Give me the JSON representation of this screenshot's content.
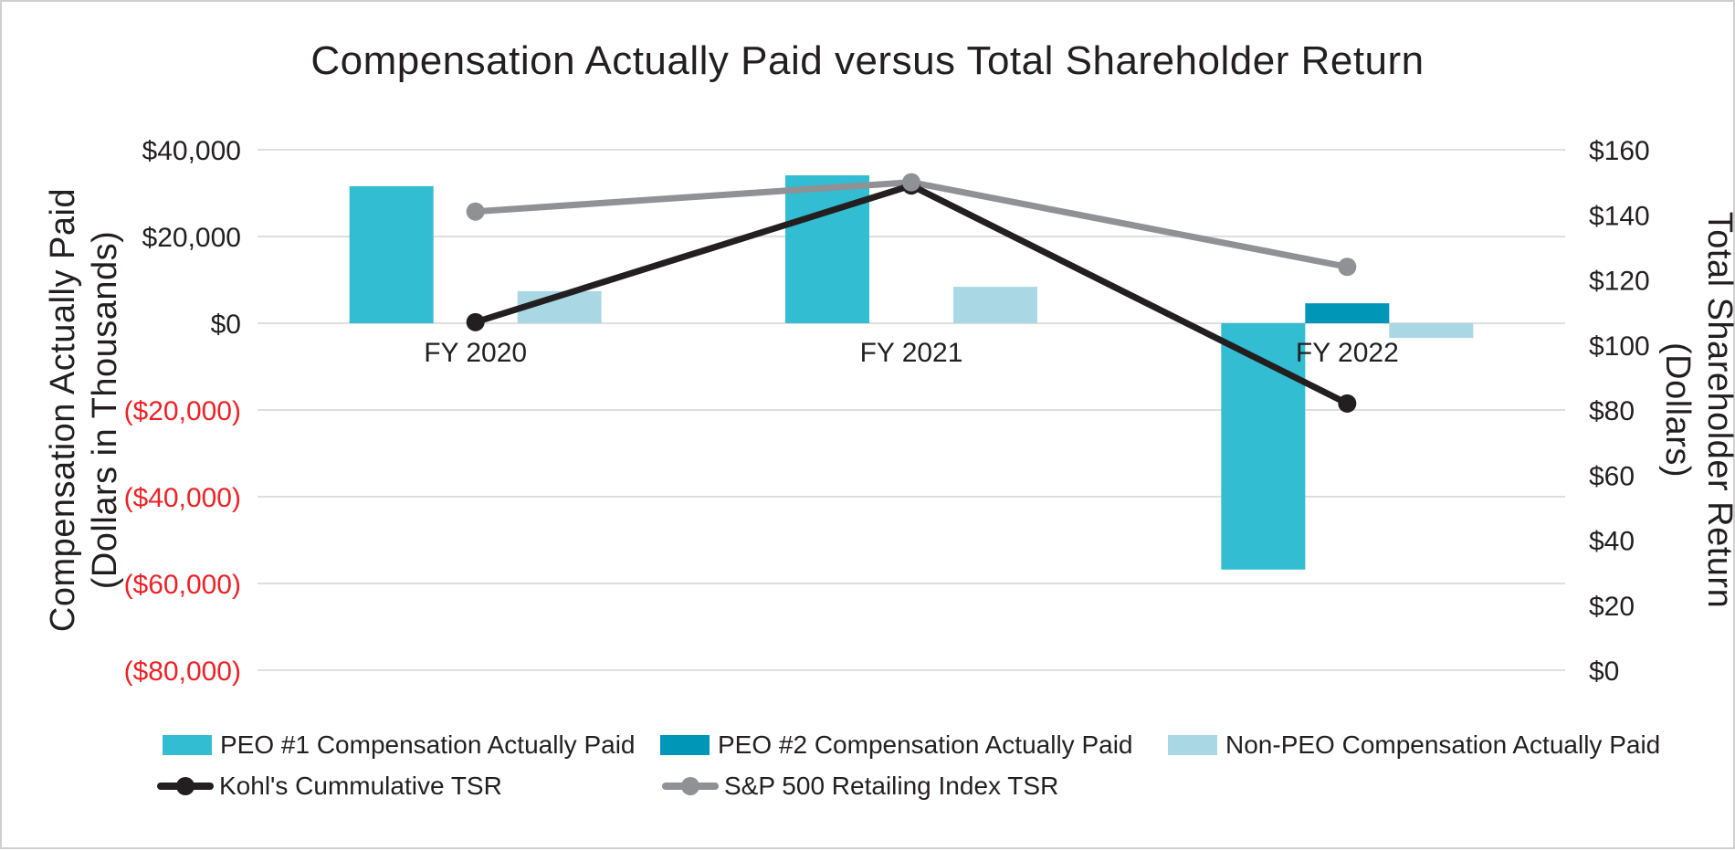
{
  "title": "Compensation Actually Paid versus Total Shareholder Return",
  "chart_data": {
    "type": "combo-bar-line",
    "categories": [
      "FY 2020",
      "FY 2021",
      "FY 2022"
    ],
    "bar_series": [
      {
        "key": "peo1",
        "name": "PEO #1 Compensation Actually Paid",
        "color": "#32BDD2",
        "axis": "left",
        "values": [
          31600,
          34100,
          -56800
        ]
      },
      {
        "key": "peo2",
        "name": "PEO #2 Compensation Actually Paid",
        "color": "#0096B8",
        "axis": "left",
        "values": [
          null,
          null,
          4600
        ]
      },
      {
        "key": "nonpeo",
        "name": "Non-PEO Compensation Actually Paid",
        "color": "#A9D8E4",
        "axis": "left",
        "values": [
          7400,
          8400,
          -3400
        ]
      }
    ],
    "line_series": [
      {
        "key": "kohls",
        "name": "Kohl's Cummulative TSR",
        "color": "#231F20",
        "axis": "right",
        "values": [
          107,
          149,
          82
        ]
      },
      {
        "key": "sp500",
        "name": "S&P 500 Retailing Index TSR",
        "color": "#8F9194",
        "axis": "right",
        "values": [
          141,
          150,
          124
        ]
      }
    ],
    "left_axis": {
      "title_line1": "Compensation Actually Paid",
      "title_line2": "(Dollars in Thousands)",
      "min": -80000,
      "max": 40000,
      "step": 20000,
      "ticks": [
        {
          "label": "$40,000",
          "value": 40000,
          "negative": false
        },
        {
          "label": "$20,000",
          "value": 20000,
          "negative": false
        },
        {
          "label": "$0",
          "value": 0,
          "negative": false
        },
        {
          "label": "($20,000)",
          "value": -20000,
          "negative": true
        },
        {
          "label": "($40,000)",
          "value": -40000,
          "negative": true
        },
        {
          "label": "($60,000)",
          "value": -60000,
          "negative": true
        },
        {
          "label": "($80,000)",
          "value": -80000,
          "negative": true
        }
      ],
      "positive_color": "#231F20",
      "negative_color": "#EC2227"
    },
    "right_axis": {
      "title_line1": "Total Shareholder Return",
      "title_line2": "(Dollars)",
      "min": 0,
      "max": 160,
      "step": 20,
      "ticks": [
        {
          "label": "$160",
          "value": 160
        },
        {
          "label": "$140",
          "value": 140
        },
        {
          "label": "$120",
          "value": 120
        },
        {
          "label": "$100",
          "value": 100
        },
        {
          "label": "$80",
          "value": 80
        },
        {
          "label": "$60",
          "value": 60
        },
        {
          "label": "$40",
          "value": 40
        },
        {
          "label": "$20",
          "value": 20
        },
        {
          "label": "$0",
          "value": 0
        }
      ],
      "color": "#231F20"
    },
    "grid": true,
    "gridline_color": "#DEDEDE",
    "text_color": "#231F20",
    "legend_position": "bottom-left-two-rows"
  }
}
